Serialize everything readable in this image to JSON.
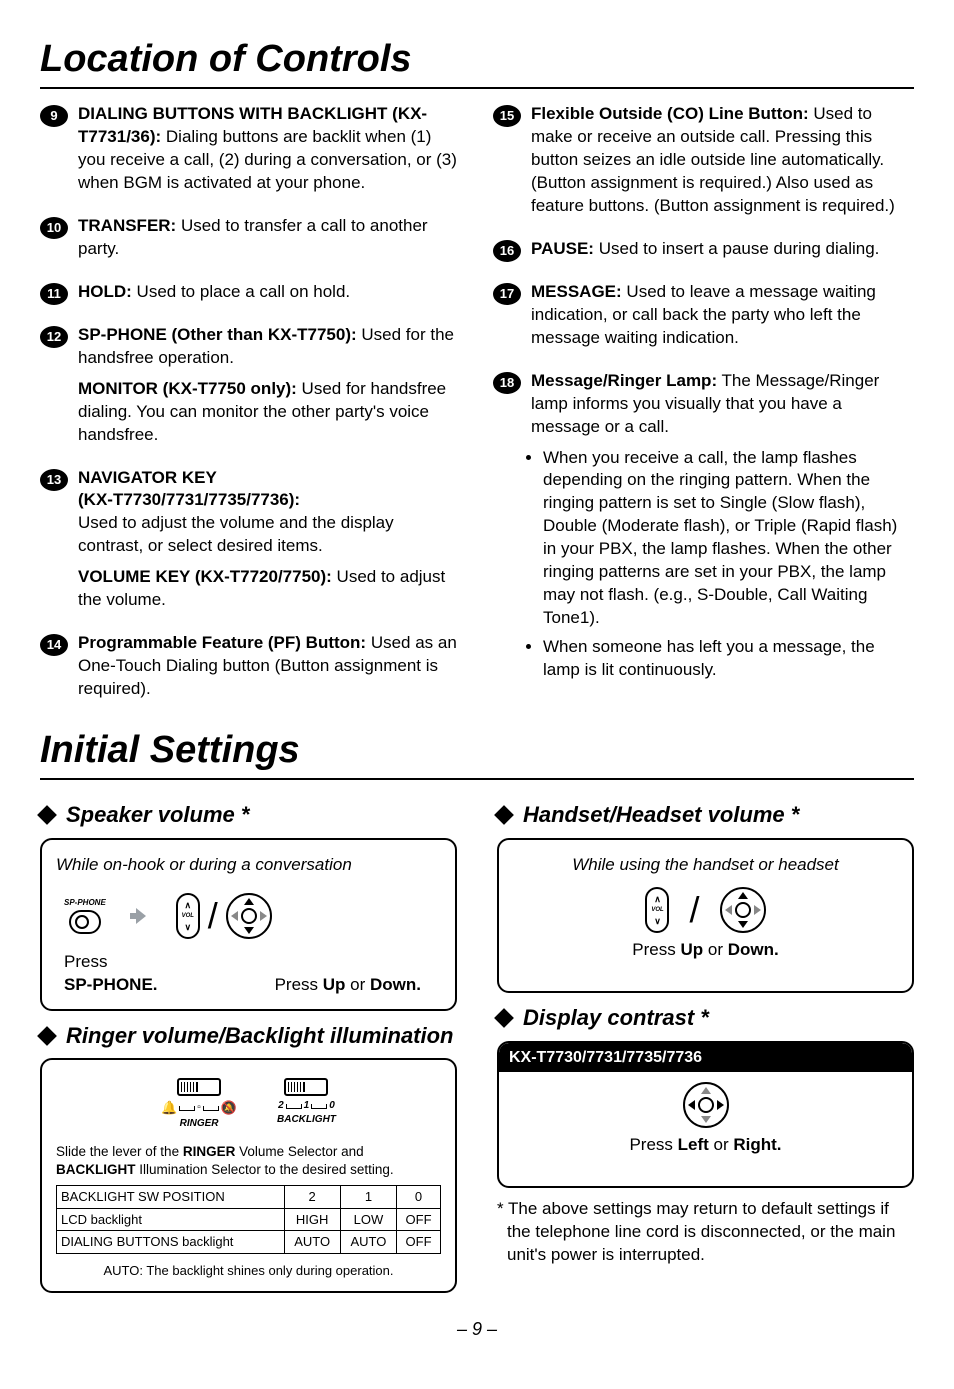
{
  "h1_controls": "Location of Controls",
  "h1_settings": "Initial Settings",
  "left_items": [
    {
      "num": "9",
      "paras": [
        {
          "lead": "DIALING BUTTONS WITH BACKLIGHT (KX-T7731/36):",
          "rest": " Dialing buttons are backlit when (1) you receive a call, (2) during a conversation, or (3) when BGM is activated at your phone."
        }
      ]
    },
    {
      "num": "10",
      "paras": [
        {
          "lead": "TRANSFER:",
          "rest": " Used to transfer a call to another party."
        }
      ]
    },
    {
      "num": "11",
      "paras": [
        {
          "lead": "HOLD:",
          "rest": " Used to place a call on hold."
        }
      ]
    },
    {
      "num": "12",
      "paras": [
        {
          "lead": "SP-PHONE (Other than KX-T7750):",
          "rest": " Used for the handsfree operation."
        },
        {
          "lead": "MONITOR (KX-T7750 only):",
          "rest": " Used for handsfree dialing.  You can monitor the other party's voice handsfree."
        }
      ]
    },
    {
      "num": "13",
      "paras": [
        {
          "lead": "NAVIGATOR KEY\n(KX-T7730/7731/7735/7736):",
          "rest": "\nUsed to adjust the volume and the display contrast, or select desired items."
        },
        {
          "lead": "VOLUME KEY (KX-T7720/7750):",
          "rest": " Used to adjust the volume."
        }
      ]
    },
    {
      "num": "14",
      "paras": [
        {
          "lead": "Programmable Feature (PF) Button:",
          "rest": " Used as an One-Touch Dialing button (Button assignment is required)."
        }
      ]
    }
  ],
  "right_items": [
    {
      "num": "15",
      "paras": [
        {
          "lead": "Flexible Outside (CO) Line Button:",
          "rest": " Used to make or receive an outside call.  Pressing this button seizes an idle outside line automatically.  (Button assignment is required.)  Also used as feature buttons. (Button assignment is required.)"
        }
      ]
    },
    {
      "num": "16",
      "paras": [
        {
          "lead": "PAUSE:",
          "rest": " Used to insert a pause during dialing."
        }
      ]
    },
    {
      "num": "17",
      "paras": [
        {
          "lead": "MESSAGE:",
          "rest": " Used to leave a message waiting indication, or call back the party who left the message waiting indication."
        }
      ]
    },
    {
      "num": "18",
      "paras": [
        {
          "lead": "Message/Ringer Lamp:",
          "rest": " The Message/Ringer lamp informs you visually that you have a message or a call."
        }
      ],
      "bullets": [
        "When you receive a call, the lamp flashes depending on the ringing pattern. When the ringing pattern is set to Single (Slow flash), Double (Moderate flash), or Triple (Rapid flash) in your PBX, the lamp flashes.  When the other ringing patterns are set in your PBX, the lamp may not flash. (e.g., S-Double, Call Waiting Tone1).",
        "When someone has left you a message, the lamp is lit continuously."
      ]
    }
  ],
  "speaker": {
    "title": "Speaker volume *",
    "context": "While on-hook or during a conversation",
    "sp_label": "SP-PHONE",
    "press_sp": "Press",
    "press_sp_bold": "SP-PHONE.",
    "caption_pre": "Press ",
    "caption_up": "Up",
    "caption_mid": " or ",
    "caption_down": "Down."
  },
  "ringer": {
    "title": "Ringer volume/Backlight illumination",
    "slider1": "RINGER",
    "slider2": "BACKLIGHT",
    "scale": {
      "a": "2",
      "b": "1",
      "c": "0"
    },
    "text1_pre": "Slide the lever of the ",
    "text1_b1": "RINGER",
    "text1_mid": " Volume Selector and ",
    "text1_b2": "BACKLIGHT",
    "text1_post": " Illumination Selector to the desired setting.",
    "table": {
      "r1": [
        "BACKLIGHT SW POSITION",
        "2",
        "1",
        "0"
      ],
      "r2": [
        "LCD backlight",
        "HIGH",
        "LOW",
        "OFF"
      ],
      "r3": [
        "DIALING BUTTONS backlight",
        "AUTO",
        "AUTO",
        "OFF"
      ]
    },
    "auto_note": "AUTO: The backlight shines only during operation."
  },
  "handset": {
    "title": "Handset/Headset volume *",
    "context": "While using the handset or headset",
    "caption_pre": "Press ",
    "caption_up": "Up",
    "caption_mid": " or ",
    "caption_down": "Down."
  },
  "contrast": {
    "title": "Display contrast *",
    "band": "KX-T7730/7731/7735/7736",
    "caption_pre": "Press ",
    "caption_left": "Left",
    "caption_mid": " or ",
    "caption_right": "Right."
  },
  "footnote": "* The above settings may return to default settings if the telephone line cord is disconnected, or the main unit's power is interrupted.",
  "pagenum": "– 9 –"
}
